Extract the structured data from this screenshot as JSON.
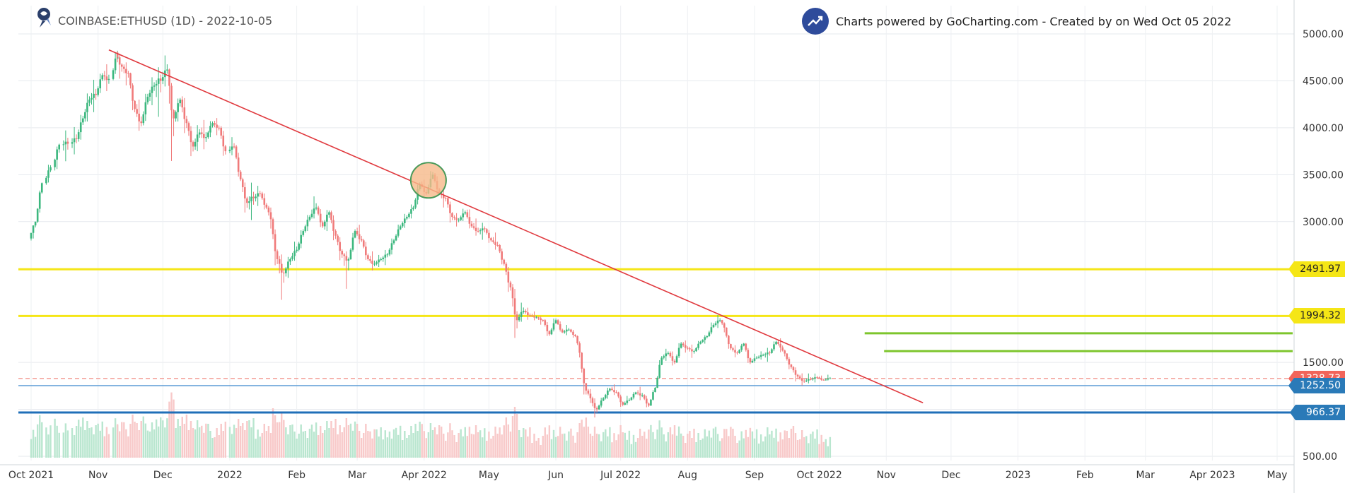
{
  "header": {
    "title": "COINBASE:ETHUSD (1D) - 2022-10-05",
    "logo_icon": "gocharting-logo-icon",
    "credit_text": "Charts powered by GoCharting.com - Created by  on Wed Oct 05 2022",
    "credit_icon": "trend-up-icon"
  },
  "chart_data": {
    "type": "candlestick",
    "symbol": "COINBASE:ETHUSD",
    "interval": "1D",
    "date": "2022-10-05",
    "x_tick_labels": [
      "Oct 2021",
      "Nov",
      "Dec",
      "2022",
      "Feb",
      "Mar",
      "Apr 2022",
      "May",
      "Jun",
      "Jul 2022",
      "Aug",
      "Sep",
      "Oct 2022",
      "Nov",
      "Dec",
      "2023",
      "Feb",
      "Mar",
      "Apr 2023",
      "May"
    ],
    "x_tick_dates": [
      "2021-10-01",
      "2021-11-01",
      "2021-12-01",
      "2022-01-01",
      "2022-02-01",
      "2022-03-01",
      "2022-04-01",
      "2022-05-01",
      "2022-06-01",
      "2022-07-01",
      "2022-08-01",
      "2022-09-01",
      "2022-10-01",
      "2022-11-01",
      "2022-12-01",
      "2023-01-01",
      "2023-02-01",
      "2023-03-01",
      "2023-04-01",
      "2023-05-01"
    ],
    "y_tick_labels": [
      "500.00",
      "1000.00",
      "1500.00",
      "2000.00",
      "2500.00",
      "3000.00",
      "3500.00",
      "4000.00",
      "4500.00",
      "5000.00"
    ],
    "y_ticks": [
      500,
      1000,
      1500,
      2000,
      2500,
      3000,
      3500,
      4000,
      4500,
      5000
    ],
    "ylim": [
      450,
      5100
    ],
    "grid": true,
    "price_levels": [
      {
        "value": 2491.97,
        "label": "2491.97",
        "color": "#f5e616",
        "label_bg": "#f5e616",
        "label_color": "#222222",
        "style": "solid"
      },
      {
        "value": 1994.32,
        "label": "1994.32",
        "color": "#f5e616",
        "label_bg": "#f5e616",
        "label_color": "#222222",
        "style": "solid"
      },
      {
        "value": 1328.73,
        "label": "1328.73",
        "color": "#f28b82",
        "label_bg": "#f2645a",
        "label_color": "#ffffff",
        "style": "dashed"
      },
      {
        "value": 1252.5,
        "label": "1252.50",
        "color": "#5b9bd5",
        "label_bg": "#2a7ab8",
        "label_color": "#ffffff",
        "style": "solid-thin"
      },
      {
        "value": 966.37,
        "label": "966.37",
        "color": "#1f6fb8",
        "label_bg": "#2a7ab8",
        "label_color": "#ffffff",
        "style": "solid-thick"
      }
    ],
    "green_levels": [
      {
        "value": 1810,
        "from": "2022-10-22",
        "to": "2023-06-05",
        "color": "#7dc52c"
      },
      {
        "value": 1620,
        "from": "2022-10-31",
        "to": "2023-06-05",
        "color": "#7dc52c"
      }
    ],
    "trendline": {
      "from": {
        "date": "2021-11-06",
        "value": 4830
      },
      "to": {
        "date": "2022-11-18",
        "value": 1070
      },
      "color": "#e0393e"
    },
    "highlight_circle": {
      "date": "2022-04-03",
      "value": 3440,
      "fill": "#f6b98a",
      "stroke": "#4a9a5a"
    },
    "ohlc": [
      [
        "2021-10-01",
        2820,
        3000,
        2760,
        3000
      ],
      [
        "2021-10-04",
        3000,
        3430,
        2960,
        3410
      ],
      [
        "2021-10-08",
        3410,
        3640,
        3360,
        3580
      ],
      [
        "2021-10-12",
        3580,
        3850,
        3480,
        3820
      ],
      [
        "2021-10-16",
        3820,
        3950,
        3640,
        3830
      ],
      [
        "2021-10-20",
        3830,
        4000,
        3700,
        3880
      ],
      [
        "2021-10-23",
        3880,
        4180,
        3800,
        4100
      ],
      [
        "2021-10-26",
        4100,
        4400,
        4000,
        4300
      ],
      [
        "2021-10-29",
        4300,
        4500,
        4150,
        4350
      ],
      [
        "2021-11-01",
        4350,
        4620,
        4300,
        4560
      ],
      [
        "2021-11-04",
        4560,
        4690,
        4400,
        4520
      ],
      [
        "2021-11-08",
        4520,
        4860,
        4480,
        4800
      ],
      [
        "2021-11-10",
        4800,
        4840,
        4500,
        4650
      ],
      [
        "2021-11-13",
        4650,
        4720,
        4450,
        4580
      ],
      [
        "2021-11-16",
        4580,
        4600,
        4100,
        4200
      ],
      [
        "2021-11-19",
        4200,
        4350,
        3950,
        4050
      ],
      [
        "2021-11-22",
        4050,
        4420,
        3980,
        4330
      ],
      [
        "2021-11-25",
        4330,
        4550,
        4200,
        4450
      ],
      [
        "2021-11-28",
        4450,
        4620,
        4100,
        4500
      ],
      [
        "2021-12-01",
        4500,
        4780,
        4400,
        4620
      ],
      [
        "2021-12-04",
        4620,
        4650,
        3560,
        4100
      ],
      [
        "2021-12-07",
        4100,
        4350,
        4000,
        4300
      ],
      [
        "2021-12-10",
        4300,
        4400,
        3900,
        4050
      ],
      [
        "2021-12-13",
        4050,
        4100,
        3650,
        3800
      ],
      [
        "2021-12-16",
        3800,
        4050,
        3700,
        3950
      ],
      [
        "2021-12-19",
        3950,
        4100,
        3780,
        3900
      ],
      [
        "2021-12-22",
        3900,
        4100,
        3850,
        4050
      ],
      [
        "2021-12-25",
        4050,
        4120,
        3920,
        4000
      ],
      [
        "2021-12-28",
        4000,
        4050,
        3650,
        3750
      ],
      [
        "2022-01-01",
        3750,
        3900,
        3690,
        3800
      ],
      [
        "2022-01-04",
        3800,
        3850,
        3400,
        3450
      ],
      [
        "2022-01-07",
        3450,
        3500,
        3050,
        3200
      ],
      [
        "2022-01-10",
        3200,
        3400,
        3000,
        3250
      ],
      [
        "2022-01-13",
        3250,
        3380,
        3150,
        3300
      ],
      [
        "2022-01-16",
        3300,
        3350,
        3100,
        3150
      ],
      [
        "2022-01-19",
        3150,
        3200,
        2900,
        3000
      ],
      [
        "2022-01-21",
        3000,
        3050,
        2450,
        2600
      ],
      [
        "2022-01-24",
        2600,
        2700,
        2160,
        2450
      ],
      [
        "2022-01-27",
        2450,
        2650,
        2350,
        2600
      ],
      [
        "2022-01-30",
        2600,
        2800,
        2550,
        2700
      ],
      [
        "2022-02-02",
        2700,
        2950,
        2650,
        2900
      ],
      [
        "2022-02-05",
        2900,
        3100,
        2850,
        3050
      ],
      [
        "2022-02-08",
        3050,
        3280,
        3000,
        3150
      ],
      [
        "2022-02-11",
        3150,
        3200,
        2900,
        2950
      ],
      [
        "2022-02-14",
        2950,
        3150,
        2850,
        3100
      ],
      [
        "2022-02-17",
        3100,
        3150,
        2750,
        2850
      ],
      [
        "2022-02-20",
        2850,
        2900,
        2550,
        2650
      ],
      [
        "2022-02-23",
        2650,
        2700,
        2300,
        2600
      ],
      [
        "2022-02-26",
        2600,
        2950,
        2580,
        2900
      ],
      [
        "2022-03-01",
        2900,
        3000,
        2750,
        2800
      ],
      [
        "2022-03-04",
        2800,
        2850,
        2550,
        2600
      ],
      [
        "2022-03-07",
        2600,
        2700,
        2480,
        2550
      ],
      [
        "2022-03-10",
        2550,
        2650,
        2500,
        2600
      ],
      [
        "2022-03-13",
        2600,
        2700,
        2520,
        2650
      ],
      [
        "2022-03-16",
        2650,
        2850,
        2600,
        2800
      ],
      [
        "2022-03-19",
        2800,
        3000,
        2780,
        2950
      ],
      [
        "2022-03-22",
        2950,
        3100,
        2900,
        3050
      ],
      [
        "2022-03-25",
        3050,
        3200,
        3000,
        3150
      ],
      [
        "2022-03-28",
        3150,
        3450,
        3100,
        3400
      ],
      [
        "2022-03-31",
        3400,
        3480,
        3250,
        3300
      ],
      [
        "2022-04-03",
        3300,
        3580,
        3280,
        3500
      ],
      [
        "2022-04-06",
        3500,
        3550,
        3250,
        3300
      ],
      [
        "2022-04-09",
        3300,
        3350,
        3150,
        3250
      ],
      [
        "2022-04-12",
        3250,
        3280,
        2950,
        3050
      ],
      [
        "2022-04-15",
        3050,
        3100,
        2950,
        3020
      ],
      [
        "2022-04-18",
        3020,
        3150,
        2980,
        3100
      ],
      [
        "2022-04-21",
        3100,
        3180,
        2900,
        2950
      ],
      [
        "2022-04-24",
        2950,
        3050,
        2850,
        2900
      ],
      [
        "2022-04-27",
        2900,
        2980,
        2800,
        2920
      ],
      [
        "2022-04-30",
        2920,
        2950,
        2750,
        2800
      ],
      [
        "2022-05-03",
        2800,
        2900,
        2700,
        2750
      ],
      [
        "2022-05-06",
        2750,
        2780,
        2500,
        2550
      ],
      [
        "2022-05-09",
        2550,
        2600,
        2200,
        2300
      ],
      [
        "2022-05-12",
        2300,
        2400,
        1700,
        1950
      ],
      [
        "2022-05-15",
        1950,
        2150,
        1900,
        2050
      ],
      [
        "2022-05-18",
        2050,
        2100,
        1950,
        2000
      ],
      [
        "2022-05-21",
        2000,
        2050,
        1950,
        1980
      ],
      [
        "2022-05-24",
        1980,
        2000,
        1900,
        1950
      ],
      [
        "2022-05-27",
        1950,
        1980,
        1750,
        1800
      ],
      [
        "2022-05-30",
        1800,
        2000,
        1780,
        1950
      ],
      [
        "2022-06-02",
        1950,
        1980,
        1800,
        1820
      ],
      [
        "2022-06-05",
        1820,
        1900,
        1780,
        1850
      ],
      [
        "2022-06-08",
        1850,
        1870,
        1750,
        1780
      ],
      [
        "2022-06-11",
        1780,
        1800,
        1500,
        1550
      ],
      [
        "2022-06-13",
        1550,
        1560,
        1080,
        1200
      ],
      [
        "2022-06-16",
        1200,
        1250,
        1050,
        1100
      ],
      [
        "2022-06-18",
        1100,
        1150,
        900,
        1000
      ],
      [
        "2022-06-21",
        1000,
        1150,
        980,
        1120
      ],
      [
        "2022-06-24",
        1120,
        1250,
        1080,
        1220
      ],
      [
        "2022-06-27",
        1220,
        1280,
        1150,
        1180
      ],
      [
        "2022-06-30",
        1180,
        1200,
        1000,
        1050
      ],
      [
        "2022-07-03",
        1050,
        1150,
        1030,
        1100
      ],
      [
        "2022-07-06",
        1100,
        1200,
        1080,
        1180
      ],
      [
        "2022-07-09",
        1180,
        1250,
        1100,
        1150
      ],
      [
        "2022-07-12",
        1150,
        1180,
        1000,
        1040
      ],
      [
        "2022-07-15",
        1040,
        1250,
        1030,
        1230
      ],
      [
        "2022-07-18",
        1230,
        1600,
        1220,
        1550
      ],
      [
        "2022-07-21",
        1550,
        1650,
        1500,
        1600
      ],
      [
        "2022-07-24",
        1600,
        1650,
        1450,
        1500
      ],
      [
        "2022-07-27",
        1500,
        1750,
        1480,
        1700
      ],
      [
        "2022-07-30",
        1700,
        1750,
        1600,
        1650
      ],
      [
        "2022-08-02",
        1650,
        1700,
        1550,
        1620
      ],
      [
        "2022-08-05",
        1620,
        1750,
        1600,
        1720
      ],
      [
        "2022-08-08",
        1720,
        1800,
        1680,
        1780
      ],
      [
        "2022-08-11",
        1780,
        1950,
        1760,
        1900
      ],
      [
        "2022-08-14",
        1900,
        2010,
        1850,
        1950
      ],
      [
        "2022-08-17",
        1950,
        1960,
        1800,
        1850
      ],
      [
        "2022-08-19",
        1850,
        1860,
        1600,
        1650
      ],
      [
        "2022-08-22",
        1650,
        1700,
        1550,
        1600
      ],
      [
        "2022-08-25",
        1600,
        1720,
        1580,
        1700
      ],
      [
        "2022-08-28",
        1700,
        1720,
        1450,
        1500
      ],
      [
        "2022-08-31",
        1500,
        1600,
        1480,
        1550
      ],
      [
        "2022-09-03",
        1550,
        1620,
        1520,
        1580
      ],
      [
        "2022-09-06",
        1580,
        1650,
        1500,
        1600
      ],
      [
        "2022-09-09",
        1600,
        1750,
        1580,
        1720
      ],
      [
        "2022-09-12",
        1720,
        1780,
        1600,
        1650
      ],
      [
        "2022-09-14",
        1650,
        1660,
        1550,
        1580
      ],
      [
        "2022-09-16",
        1580,
        1600,
        1400,
        1450
      ],
      [
        "2022-09-19",
        1450,
        1480,
        1280,
        1350
      ],
      [
        "2022-09-22",
        1350,
        1400,
        1250,
        1300
      ],
      [
        "2022-09-25",
        1300,
        1380,
        1270,
        1320
      ],
      [
        "2022-09-28",
        1320,
        1380,
        1280,
        1340
      ],
      [
        "2022-10-01",
        1340,
        1370,
        1300,
        1310
      ],
      [
        "2022-10-04",
        1310,
        1370,
        1300,
        1330
      ]
    ],
    "volume_max_value": 1
  }
}
